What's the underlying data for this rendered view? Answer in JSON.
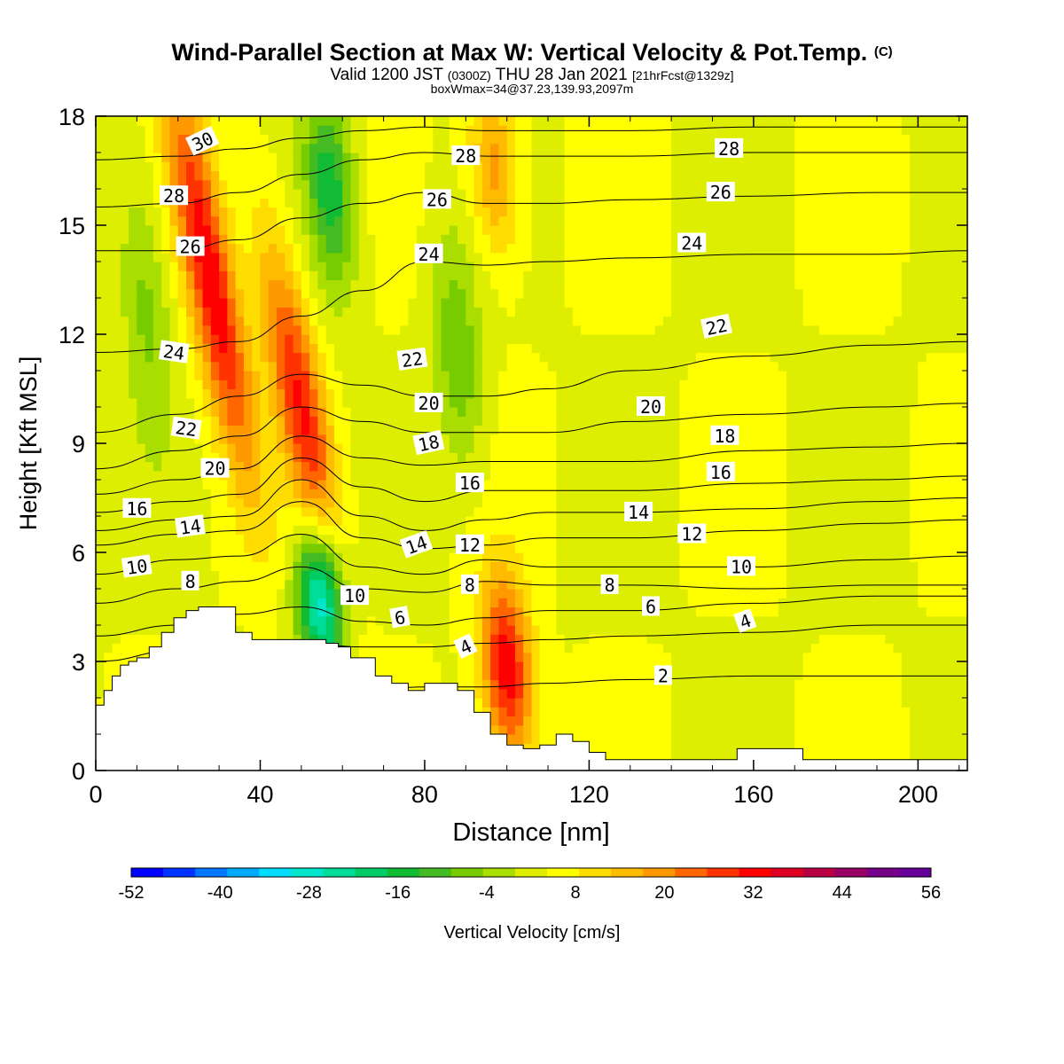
{
  "header": {
    "title": "Wind-Parallel Section at Max W: Vertical Velocity & Pot.Temp.",
    "title_mark": "(C)",
    "valid_prefix": "Valid 1200 JST",
    "valid_utc": "(0300Z)",
    "valid_date": "THU 28 Jan 2021",
    "forecast": "[21hrFcst@1329z]",
    "box_info": "boxWmax=34@37.23,139.93,2097m"
  },
  "chart_data": {
    "type": "heatmap",
    "title": "Wind-Parallel Section at Max W: Vertical Velocity & Pot.Temp.",
    "xlabel": "Distance [nm]",
    "ylabel": "Height [Kft MSL]",
    "xlim": [
      0,
      212
    ],
    "ylim": [
      0,
      18
    ],
    "x_ticks": [
      0,
      40,
      80,
      120,
      160,
      200
    ],
    "y_ticks": [
      0,
      3,
      6,
      9,
      12,
      15,
      18
    ],
    "grid": false,
    "colorbar": {
      "label": "Vertical Velocity [cm/s]",
      "placement": "bottom",
      "ticks": [
        -52,
        -40,
        -28,
        -16,
        -4,
        8,
        20,
        32,
        44,
        56
      ],
      "colors": [
        "#0000ff",
        "#0033ff",
        "#0077ff",
        "#00aaff",
        "#00ddff",
        "#00e6cc",
        "#00dd99",
        "#00cc66",
        "#11bb33",
        "#44bb22",
        "#77cc00",
        "#aadd00",
        "#ddee00",
        "#ffff00",
        "#ffdd00",
        "#ffbb00",
        "#ff9900",
        "#ff6600",
        "#ff3300",
        "#ff0000",
        "#dd0022",
        "#bb0044",
        "#990066",
        "#770088",
        "#660099"
      ]
    },
    "velocity_features": [
      {
        "name": "updraft",
        "x": 28,
        "z_range": [
          9,
          18
        ],
        "w": 30
      },
      {
        "name": "updraft",
        "x": 50,
        "z_range": [
          6,
          14
        ],
        "w": 26
      },
      {
        "name": "updraft",
        "x": 100,
        "z_range": [
          1,
          4.5
        ],
        "w": 30
      },
      {
        "name": "updraft",
        "x": 97,
        "z_range": [
          15,
          18
        ],
        "w": 16
      },
      {
        "name": "downdraft",
        "x": 55,
        "z_range": [
          3.5,
          6
        ],
        "w": -36
      },
      {
        "name": "downdraft",
        "x": 57,
        "z_range": [
          14,
          18
        ],
        "w": -20
      },
      {
        "name": "downdraft",
        "x": 88,
        "z_range": [
          9,
          14
        ],
        "w": -12
      },
      {
        "name": "downdraft",
        "x": 12,
        "z_range": [
          10,
          16
        ],
        "w": -10
      }
    ],
    "terrain": {
      "x": [
        0,
        2,
        4,
        6,
        8,
        10,
        13,
        16,
        19,
        22,
        25,
        30,
        34,
        38,
        44,
        50,
        56,
        59,
        62,
        68,
        72,
        76,
        80,
        84,
        88,
        92,
        96,
        100,
        104,
        108,
        112,
        116,
        120,
        124,
        130,
        150,
        156,
        158,
        160,
        166,
        172,
        180,
        200,
        212
      ],
      "height": [
        1.8,
        2.2,
        2.6,
        2.9,
        3.0,
        3.1,
        3.4,
        3.8,
        4.2,
        4.4,
        4.5,
        4.5,
        3.8,
        3.6,
        3.6,
        3.6,
        3.5,
        3.4,
        3.1,
        2.6,
        2.4,
        2.2,
        2.4,
        2.4,
        2.2,
        1.6,
        1.0,
        0.7,
        0.6,
        0.7,
        1.0,
        0.8,
        0.5,
        0.3,
        0.3,
        0.3,
        0.6,
        0.6,
        0.6,
        0.6,
        0.3,
        0.3,
        0.3,
        0.3
      ]
    },
    "isentropes": {
      "series_label": "Pot.Temp.",
      "x": [
        0,
        20,
        35,
        50,
        65,
        80,
        95,
        110,
        130,
        160,
        190,
        212
      ],
      "levels": [
        {
          "value": 2,
          "z": [
            1.3,
            1.6,
            2.0,
            2.2,
            2.2,
            2.3,
            2.3,
            2.4,
            2.5,
            2.6,
            2.6,
            2.6
          ]
        },
        {
          "value": 4,
          "z": [
            3.0,
            3.3,
            3.5,
            3.5,
            3.4,
            3.4,
            3.5,
            3.6,
            3.7,
            3.8,
            4.0,
            4.0
          ]
        },
        {
          "value": 6,
          "z": [
            3.7,
            4.0,
            4.3,
            4.5,
            4.1,
            4.0,
            4.2,
            4.4,
            4.4,
            4.6,
            4.8,
            4.8
          ]
        },
        {
          "value": 8,
          "z": [
            4.6,
            5.0,
            5.2,
            5.6,
            5.0,
            4.9,
            5.2,
            5.1,
            5.1,
            5.0,
            5.1,
            5.1
          ]
        },
        {
          "value": 10,
          "z": [
            5.4,
            5.8,
            5.9,
            6.5,
            5.6,
            5.4,
            5.8,
            5.6,
            5.6,
            5.6,
            5.8,
            5.9
          ]
        },
        {
          "value": 12,
          "z": [
            6.2,
            6.5,
            6.6,
            7.4,
            6.4,
            6.1,
            6.2,
            6.4,
            6.4,
            6.6,
            6.8,
            6.9
          ]
        },
        {
          "value": 14,
          "z": [
            6.6,
            6.9,
            7.0,
            8.0,
            7.0,
            6.6,
            6.9,
            7.1,
            7.1,
            7.2,
            7.4,
            7.5
          ]
        },
        {
          "value": 16,
          "z": [
            7.1,
            7.4,
            7.6,
            8.6,
            7.8,
            7.4,
            7.7,
            7.7,
            7.7,
            7.9,
            8.0,
            8.1
          ]
        },
        {
          "value": 18,
          "z": [
            7.6,
            8.0,
            8.3,
            9.2,
            8.6,
            8.4,
            8.5,
            8.5,
            8.5,
            8.8,
            8.9,
            9.0
          ]
        },
        {
          "value": 20,
          "z": [
            8.3,
            8.8,
            9.2,
            10.0,
            9.6,
            9.3,
            9.3,
            9.3,
            9.6,
            9.8,
            10.0,
            10.1
          ]
        },
        {
          "value": 22,
          "z": [
            9.3,
            9.8,
            10.3,
            10.9,
            10.6,
            10.3,
            10.3,
            10.5,
            11.0,
            11.4,
            11.7,
            11.8
          ]
        },
        {
          "value": 24,
          "z": [
            11.5,
            11.6,
            11.8,
            12.5,
            13.2,
            14.0,
            13.9,
            14.0,
            14.1,
            14.2,
            14.2,
            14.3
          ]
        },
        {
          "value": 26,
          "z": [
            14.3,
            14.3,
            14.6,
            15.2,
            15.6,
            15.9,
            15.6,
            15.6,
            15.7,
            15.8,
            15.9,
            15.9
          ]
        },
        {
          "value": 28,
          "z": [
            15.5,
            15.6,
            15.9,
            16.4,
            16.8,
            17.0,
            16.9,
            16.9,
            16.9,
            17.0,
            17.0,
            17.0
          ]
        },
        {
          "value": 30,
          "z": [
            16.8,
            16.9,
            17.1,
            17.4,
            17.6,
            17.7,
            17.6,
            17.6,
            17.6,
            17.7,
            17.7,
            17.7
          ]
        }
      ],
      "labels": [
        {
          "text": "30",
          "x": 26,
          "z": 17.3,
          "angle": -25
        },
        {
          "text": "28",
          "x": 19,
          "z": 15.8,
          "angle": 0
        },
        {
          "text": "26",
          "x": 23,
          "z": 14.4,
          "angle": 0
        },
        {
          "text": "24",
          "x": 19,
          "z": 11.5,
          "angle": 8
        },
        {
          "text": "22",
          "x": 22,
          "z": 9.4,
          "angle": 8
        },
        {
          "text": "20",
          "x": 29,
          "z": 8.3,
          "angle": 0
        },
        {
          "text": "16",
          "x": 10,
          "z": 7.2,
          "angle": 0
        },
        {
          "text": "14",
          "x": 23,
          "z": 6.7,
          "angle": -8
        },
        {
          "text": "10",
          "x": 10,
          "z": 5.6,
          "angle": -8
        },
        {
          "text": "8",
          "x": 23,
          "z": 5.2,
          "angle": 0
        },
        {
          "text": "28",
          "x": 90,
          "z": 16.9,
          "angle": 0
        },
        {
          "text": "26",
          "x": 83,
          "z": 15.7,
          "angle": 0
        },
        {
          "text": "24",
          "x": 81,
          "z": 14.2,
          "angle": 0
        },
        {
          "text": "22",
          "x": 77,
          "z": 11.3,
          "angle": -8
        },
        {
          "text": "20",
          "x": 81,
          "z": 10.1,
          "angle": 0
        },
        {
          "text": "18",
          "x": 81,
          "z": 9.0,
          "angle": -12
        },
        {
          "text": "16",
          "x": 91,
          "z": 7.9,
          "angle": 0
        },
        {
          "text": "14",
          "x": 78,
          "z": 6.2,
          "angle": -20
        },
        {
          "text": "12",
          "x": 91,
          "z": 6.2,
          "angle": 0
        },
        {
          "text": "10",
          "x": 63,
          "z": 4.8,
          "angle": 0
        },
        {
          "text": "8",
          "x": 91,
          "z": 5.1,
          "angle": 0
        },
        {
          "text": "6",
          "x": 74,
          "z": 4.2,
          "angle": -10
        },
        {
          "text": "4",
          "x": 90,
          "z": 3.4,
          "angle": -25
        },
        {
          "text": "28",
          "x": 154,
          "z": 17.1,
          "angle": 0
        },
        {
          "text": "26",
          "x": 152,
          "z": 15.9,
          "angle": 0
        },
        {
          "text": "24",
          "x": 145,
          "z": 14.5,
          "angle": 0
        },
        {
          "text": "22",
          "x": 151,
          "z": 12.2,
          "angle": -12
        },
        {
          "text": "20",
          "x": 135,
          "z": 10.0,
          "angle": 0
        },
        {
          "text": "18",
          "x": 153,
          "z": 9.2,
          "angle": 0
        },
        {
          "text": "16",
          "x": 152,
          "z": 8.2,
          "angle": 0
        },
        {
          "text": "14",
          "x": 132,
          "z": 7.1,
          "angle": 0
        },
        {
          "text": "12",
          "x": 145,
          "z": 6.5,
          "angle": 0
        },
        {
          "text": "10",
          "x": 157,
          "z": 5.6,
          "angle": 0
        },
        {
          "text": "8",
          "x": 125,
          "z": 5.1,
          "angle": 0
        },
        {
          "text": "6",
          "x": 135,
          "z": 4.5,
          "angle": 0
        },
        {
          "text": "4",
          "x": 158,
          "z": 4.1,
          "angle": -20
        },
        {
          "text": "2",
          "x": 138,
          "z": 2.6,
          "angle": 0
        }
      ]
    }
  }
}
